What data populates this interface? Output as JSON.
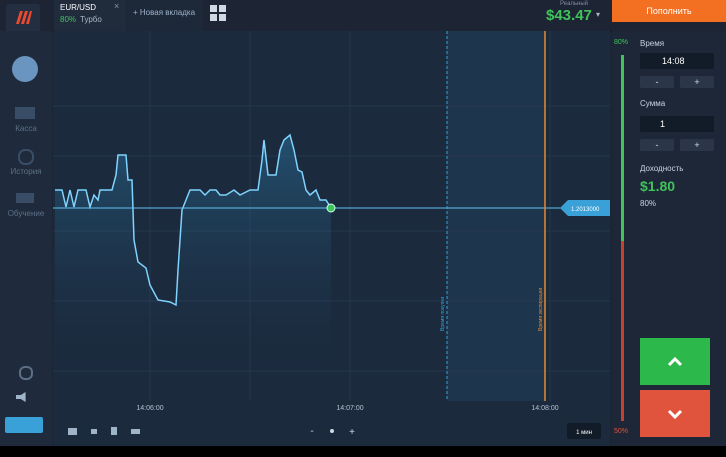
{
  "header": {
    "tab": {
      "pair": "EUR/USD",
      "payout": "80%",
      "mode": "Турбо"
    },
    "new_tab": "+ Новая вкладка",
    "account": {
      "label": "Реальный",
      "balance": "$43.47",
      "caret": "▾"
    },
    "deposit": "Пополнить"
  },
  "sidebar": {
    "items": [
      "Касса",
      "История",
      "Обучение"
    ]
  },
  "chart": {
    "price": "1.2013000",
    "purchase_line": "Время покупки",
    "expiry_line": "Время экспирации",
    "time_labels": [
      "14:06:00",
      "14:07:00",
      "14:08:00"
    ],
    "timeframe": "1 мин",
    "zoom": [
      "-",
      "+"
    ]
  },
  "panel": {
    "top_percent": "80%",
    "time_label": "Время",
    "time_value": "14:08",
    "amount_label": "Сумма",
    "amount_value": "1",
    "minus": "-",
    "plus": "+",
    "profit_label": "Доходность",
    "profit_value": "$1.80",
    "profit_percent": "80%",
    "bottom_percent": "50%"
  }
}
